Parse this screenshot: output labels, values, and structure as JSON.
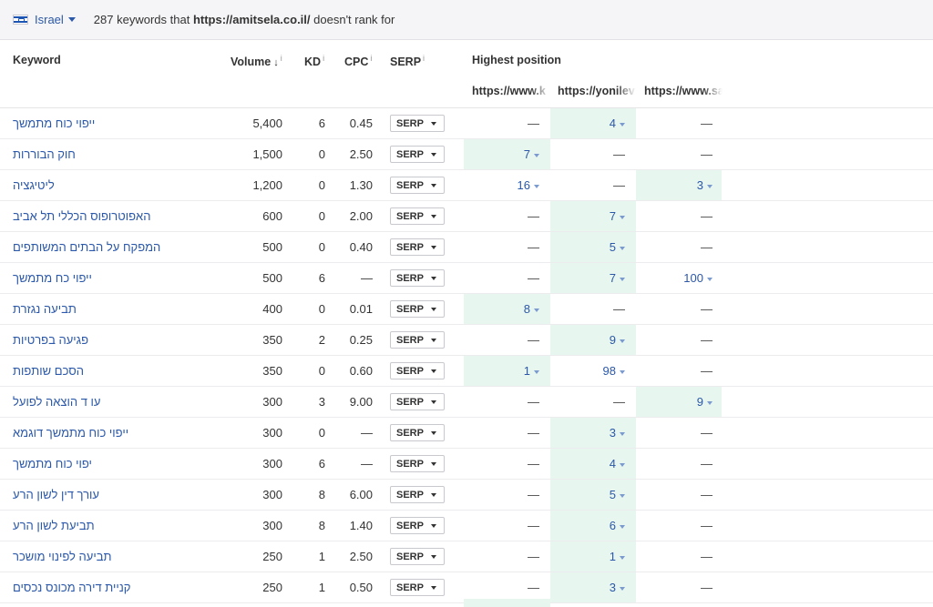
{
  "topbar": {
    "country": "Israel",
    "count": "287",
    "text_before": " keywords that ",
    "domain": "https://amitsela.co.il/",
    "text_after": " doesn't rank for"
  },
  "columns": {
    "keyword": "Keyword",
    "volume": "Volume",
    "kd": "KD",
    "cpc": "CPC",
    "serp": "SERP",
    "highest_position": "Highest position",
    "sites": [
      "https://www.k",
      "https://yonilev",
      "https://www.sa"
    ]
  },
  "serp_button": "SERP",
  "rows": [
    {
      "kw": "ייפוי כוח מתמשך",
      "vol": "5,400",
      "kd": "6",
      "cpc": "0.45",
      "p": [
        "—",
        "4",
        "—"
      ]
    },
    {
      "kw": "חוק הבוררות",
      "vol": "1,500",
      "kd": "0",
      "cpc": "2.50",
      "p": [
        "7",
        "—",
        "—"
      ]
    },
    {
      "kw": "ליטיגציה",
      "vol": "1,200",
      "kd": "0",
      "cpc": "1.30",
      "p": [
        "16",
        "—",
        "3"
      ]
    },
    {
      "kw": "האפוטרופוס הכללי תל אביב",
      "vol": "600",
      "kd": "0",
      "cpc": "2.00",
      "p": [
        "—",
        "7",
        "—"
      ]
    },
    {
      "kw": "המפקח על הבתים המשותפים",
      "vol": "500",
      "kd": "0",
      "cpc": "0.40",
      "p": [
        "—",
        "5",
        "—"
      ]
    },
    {
      "kw": "ייפוי כח מתמשך",
      "vol": "500",
      "kd": "6",
      "cpc": "—",
      "p": [
        "—",
        "7",
        "100"
      ]
    },
    {
      "kw": "תביעה נגזרת",
      "vol": "400",
      "kd": "0",
      "cpc": "0.01",
      "p": [
        "8",
        "—",
        "—"
      ]
    },
    {
      "kw": "פגיעה בפרטיות",
      "vol": "350",
      "kd": "2",
      "cpc": "0.25",
      "p": [
        "—",
        "9",
        "—"
      ]
    },
    {
      "kw": "הסכם שותפות",
      "vol": "350",
      "kd": "0",
      "cpc": "0.60",
      "p": [
        "1",
        "98",
        "—"
      ]
    },
    {
      "kw": "עו ד הוצאה לפועל",
      "vol": "300",
      "kd": "3",
      "cpc": "9.00",
      "p": [
        "—",
        "—",
        "9"
      ]
    },
    {
      "kw": "ייפוי כוח מתמשך דוגמא",
      "vol": "300",
      "kd": "0",
      "cpc": "—",
      "p": [
        "—",
        "3",
        "—"
      ]
    },
    {
      "kw": "יפוי כוח מתמשך",
      "vol": "300",
      "kd": "6",
      "cpc": "—",
      "p": [
        "—",
        "4",
        "—"
      ]
    },
    {
      "kw": "עורך דין לשון הרע",
      "vol": "300",
      "kd": "8",
      "cpc": "6.00",
      "p": [
        "—",
        "5",
        "—"
      ]
    },
    {
      "kw": "תביעת לשון הרע",
      "vol": "300",
      "kd": "8",
      "cpc": "1.40",
      "p": [
        "—",
        "6",
        "—"
      ]
    },
    {
      "kw": "תביעה לפינוי מושכר",
      "vol": "250",
      "kd": "1",
      "cpc": "2.50",
      "p": [
        "—",
        "1",
        "—"
      ]
    },
    {
      "kw": "קניית דירה מכונס נכסים",
      "vol": "250",
      "kd": "1",
      "cpc": "0.50",
      "p": [
        "—",
        "3",
        "—"
      ]
    }
  ],
  "highlighted": [
    [
      1
    ],
    [
      0
    ],
    [
      2
    ],
    [
      1
    ],
    [
      1
    ],
    [
      1
    ],
    [
      0
    ],
    [
      1
    ],
    [
      0
    ],
    [
      2
    ],
    [
      1
    ],
    [
      1
    ],
    [
      1
    ],
    [
      1
    ],
    [
      1
    ],
    [
      1
    ]
  ],
  "colors": {
    "link": "#2b58a8",
    "highlight": "#e8f6f0",
    "header_bg": "#f5f5f7"
  }
}
